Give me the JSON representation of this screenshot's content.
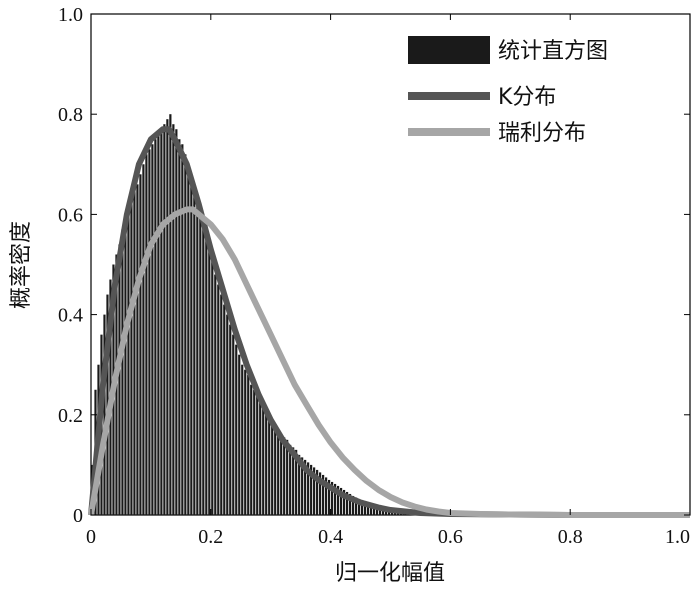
{
  "chart_data": {
    "type": "bar",
    "xlabel": "归一化幅值",
    "ylabel": "概率密度",
    "xlim": [
      0,
      1.0
    ],
    "ylim": [
      0,
      1.0
    ],
    "x_ticks": [
      "0",
      "0.2",
      "0.4",
      "0.6",
      "0.8",
      "1.0"
    ],
    "y_ticks": [
      "0",
      "0.2",
      "0.4",
      "0.6",
      "0.8",
      "1.0"
    ],
    "x_tick_values": [
      0,
      0.2,
      0.4,
      0.6,
      0.8,
      1.0
    ],
    "y_tick_values": [
      0,
      0.2,
      0.4,
      0.6,
      0.8,
      1.0
    ],
    "grid": false,
    "legend_position": "top-right",
    "histogram": {
      "name": "统计直方图",
      "color": "#1a1a1a",
      "bin_width": 0.005,
      "values": [
        0.1,
        0.25,
        0.3,
        0.36,
        0.4,
        0.44,
        0.47,
        0.5,
        0.52,
        0.54,
        0.57,
        0.59,
        0.61,
        0.63,
        0.65,
        0.66,
        0.68,
        0.7,
        0.72,
        0.73,
        0.74,
        0.75,
        0.76,
        0.77,
        0.78,
        0.79,
        0.8,
        0.78,
        0.77,
        0.75,
        0.74,
        0.72,
        0.7,
        0.68,
        0.65,
        0.63,
        0.61,
        0.58,
        0.56,
        0.53,
        0.51,
        0.48,
        0.46,
        0.44,
        0.42,
        0.4,
        0.38,
        0.36,
        0.34,
        0.32,
        0.3,
        0.29,
        0.28,
        0.26,
        0.25,
        0.24,
        0.23,
        0.22,
        0.21,
        0.2,
        0.19,
        0.18,
        0.17,
        0.16,
        0.155,
        0.15,
        0.14,
        0.135,
        0.13,
        0.12,
        0.115,
        0.11,
        0.105,
        0.1,
        0.095,
        0.09,
        0.085,
        0.08,
        0.075,
        0.07,
        0.066,
        0.062,
        0.058,
        0.054,
        0.05,
        0.046,
        0.042,
        0.038,
        0.035,
        0.032,
        0.03,
        0.028,
        0.026,
        0.024,
        0.022,
        0.02,
        0.018,
        0.016,
        0.014,
        0.012,
        0.011,
        0.01,
        0.009,
        0.008,
        0.007,
        0.006,
        0.006,
        0.005,
        0.005,
        0.004,
        0.004,
        0.004,
        0.003,
        0.003,
        0.003,
        0.003,
        0.002,
        0.002,
        0.002,
        0.002,
        0.003,
        0.002,
        0.002,
        0.002,
        0.002,
        0.002,
        0.002,
        0.002,
        0.002,
        0.002,
        0.002,
        0.002,
        0.002,
        0.002,
        0.002,
        0.002,
        0.002,
        0.002,
        0.002,
        0.002,
        0.002,
        0.002,
        0.002,
        0.002,
        0.002,
        0.002,
        0.002,
        0.002,
        0.002,
        0.002,
        0.002,
        0.002,
        0.002,
        0.002,
        0.002,
        0.002,
        0.002,
        0.002,
        0.002,
        0.002,
        0.002,
        0.002,
        0.002,
        0.002,
        0.002,
        0.002,
        0.002,
        0.002,
        0.002,
        0.002,
        0.002,
        0.002,
        0.002,
        0.002,
        0.002,
        0.002,
        0.002,
        0.002,
        0.002,
        0.002,
        0.002,
        0.002,
        0.002,
        0.002,
        0.002,
        0.002,
        0.002,
        0.002,
        0.002,
        0.002,
        0.002,
        0.002,
        0.002,
        0.002,
        0.002,
        0.002,
        0.002,
        0.002,
        0.002,
        0.002
      ]
    },
    "series": [
      {
        "name": "K分布",
        "color": "#555555",
        "x": [
          0,
          0.02,
          0.04,
          0.06,
          0.08,
          0.1,
          0.12,
          0.13,
          0.14,
          0.16,
          0.18,
          0.2,
          0.22,
          0.24,
          0.26,
          0.28,
          0.3,
          0.32,
          0.34,
          0.36,
          0.38,
          0.4,
          0.42,
          0.45,
          0.48,
          0.5,
          0.55,
          0.6,
          0.7,
          0.8,
          0.9,
          1.0
        ],
        "values": [
          0,
          0.26,
          0.46,
          0.6,
          0.7,
          0.75,
          0.77,
          0.77,
          0.75,
          0.7,
          0.62,
          0.53,
          0.45,
          0.37,
          0.3,
          0.24,
          0.19,
          0.15,
          0.12,
          0.09,
          0.07,
          0.055,
          0.04,
          0.025,
          0.015,
          0.01,
          0.004,
          0.002,
          0.001,
          0.0,
          0.0,
          0.0
        ]
      },
      {
        "name": "瑞利分布",
        "color": "#a6a6a6",
        "x": [
          0,
          0.02,
          0.04,
          0.06,
          0.08,
          0.1,
          0.12,
          0.14,
          0.16,
          0.17,
          0.18,
          0.2,
          0.22,
          0.24,
          0.26,
          0.28,
          0.3,
          0.32,
          0.34,
          0.36,
          0.38,
          0.4,
          0.42,
          0.44,
          0.46,
          0.48,
          0.5,
          0.52,
          0.54,
          0.56,
          0.58,
          0.6,
          0.65,
          0.7,
          0.8,
          0.9,
          1.0
        ],
        "values": [
          0,
          0.14,
          0.27,
          0.38,
          0.47,
          0.54,
          0.58,
          0.6,
          0.61,
          0.61,
          0.6,
          0.58,
          0.55,
          0.51,
          0.46,
          0.41,
          0.36,
          0.31,
          0.26,
          0.22,
          0.18,
          0.145,
          0.115,
          0.09,
          0.068,
          0.05,
          0.036,
          0.025,
          0.017,
          0.011,
          0.007,
          0.004,
          0.002,
          0.001,
          0.0,
          0.0,
          0.0
        ]
      }
    ]
  }
}
